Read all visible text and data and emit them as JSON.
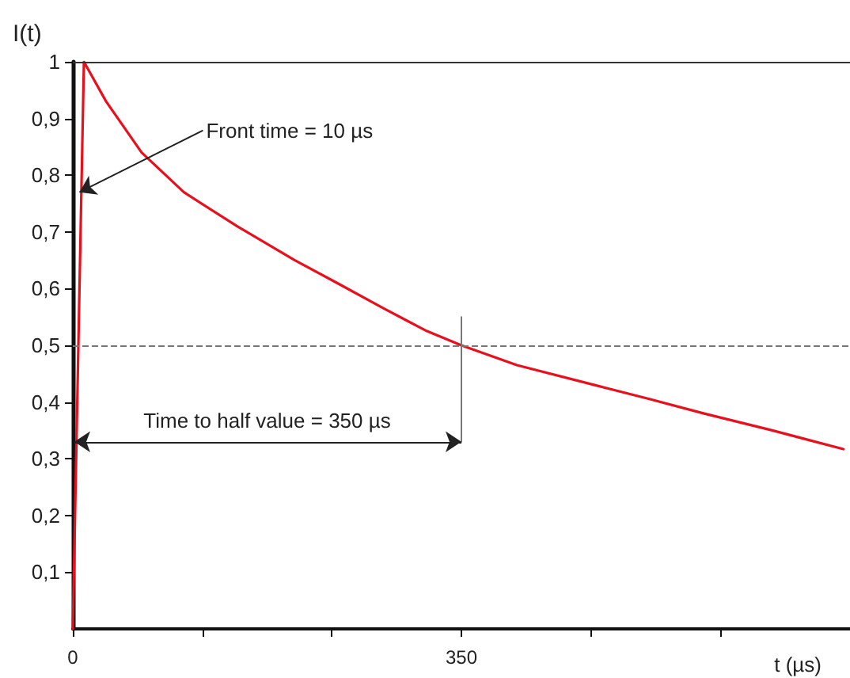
{
  "chart_data": {
    "type": "line",
    "ylabel": "I(t)",
    "xlabel": "t (µs)",
    "x": [
      0,
      10,
      30,
      62,
      100,
      148,
      200,
      238,
      280,
      319,
      350,
      400,
      470,
      520,
      568,
      630,
      694
    ],
    "series": [
      {
        "color": "#e8101c",
        "values": [
          0,
          1,
          0.93,
          0.84,
          0.77,
          0.71,
          0.65,
          0.61,
          0.565,
          0.525,
          0.5,
          0.465,
          0.43,
          0.405,
          0.38,
          0.35,
          0.317
        ]
      },
      {
        "color": "#777777",
        "x": [
          350,
          350
        ],
        "values": [
          0.33,
          0.55
        ]
      }
    ],
    "xlim": [
      0,
      700
    ],
    "xticks": [
      0,
      {
        "value": 116.67,
        "label": null
      },
      {
        "value": 233.33,
        "label": null
      },
      350,
      {
        "value": 466.67,
        "label": null
      },
      {
        "value": 583.33,
        "label": null
      }
    ],
    "ylim": [
      0,
      1
    ],
    "yticks": [
      {
        "value": 0.1,
        "label": "0,1"
      },
      {
        "value": 0.2,
        "label": "0,2"
      },
      {
        "value": 0.3,
        "label": "0,3"
      },
      {
        "value": 0.4,
        "label": "0,4"
      },
      {
        "value": 0.5,
        "label": "0,5"
      },
      {
        "value": 0.6,
        "label": "0,6"
      },
      {
        "value": 0.7,
        "label": "0,7"
      },
      {
        "value": 0.8,
        "label": "0,8"
      },
      {
        "value": 0.9,
        "label": "0,9"
      },
      1
    ],
    "ref_lines": [
      {
        "axis": "y",
        "value": 0.5,
        "color": "#777777",
        "line_style": "dashed"
      },
      {
        "axis": "y",
        "value": 1,
        "color": "#333333",
        "line_style": "solid"
      }
    ],
    "annotations": [
      {
        "text": "Front time = 10 µs",
        "x": 6,
        "y": 0.77
      },
      "Time to half value = 350 µs"
    ],
    "grid": false,
    "marker": "none",
    "line_style": "solid"
  }
}
